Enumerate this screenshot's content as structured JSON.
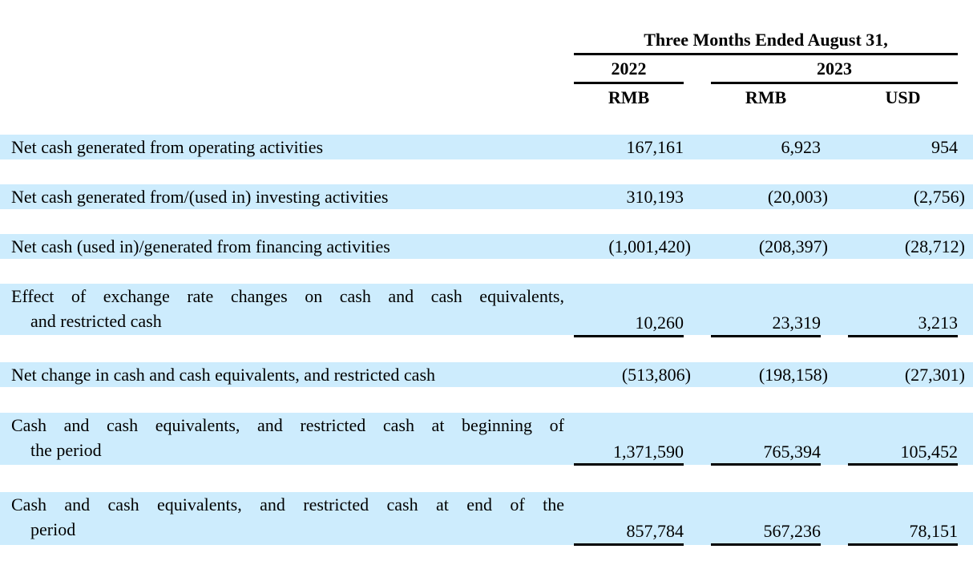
{
  "header": {
    "period_title": "Three Months Ended August 31,",
    "years": [
      "2022",
      "2023"
    ],
    "currencies": [
      "RMB",
      "RMB",
      "USD"
    ]
  },
  "rows": [
    {
      "label": [
        "Net cash generated from operating activities"
      ],
      "values": [
        "167,161",
        "6,923",
        "954"
      ]
    },
    {
      "label": [
        "Net cash generated from/(used in) investing activities"
      ],
      "values": [
        "310,193",
        "(20,003)",
        "(2,756)"
      ]
    },
    {
      "label": [
        "Net cash (used in)/generated from financing activities"
      ],
      "values": [
        "(1,001,420)",
        "(208,397)",
        "(28,712)"
      ]
    },
    {
      "label": [
        "Effect of exchange rate changes on cash and cash equivalents,",
        "and restricted cash"
      ],
      "values": [
        "10,260",
        "23,319",
        "3,213"
      ]
    },
    {
      "label": [
        "Net change in cash and cash equivalents, and restricted cash"
      ],
      "values": [
        "(513,806)",
        "(198,158)",
        "(27,301)"
      ]
    },
    {
      "label": [
        "Cash and cash equivalents, and restricted cash at beginning of",
        "the period"
      ],
      "values": [
        "1,371,590",
        "765,394",
        "105,452"
      ]
    },
    {
      "label": [
        "Cash and cash equivalents, and restricted cash at end of the",
        "period"
      ],
      "values": [
        "857,784",
        "567,236",
        "78,151"
      ]
    }
  ],
  "colors": {
    "band": "#cdecfd"
  }
}
